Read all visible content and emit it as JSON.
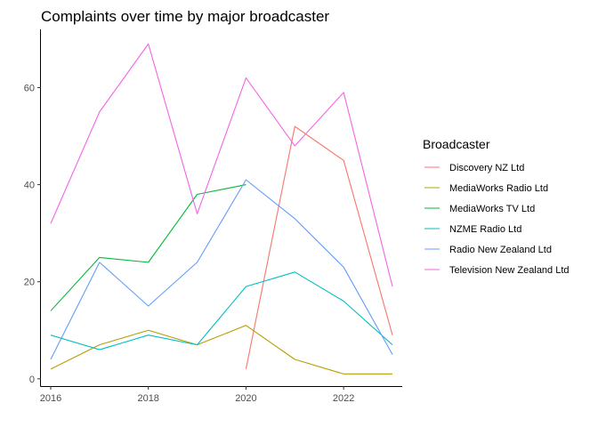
{
  "chart_data": {
    "type": "line",
    "title": "Complaints over time by major broadcaster",
    "xlabel": "",
    "ylabel": "",
    "xlim": [
      2015.8,
      2023.2
    ],
    "ylim": [
      -1.5,
      72
    ],
    "x_ticks": [
      2016,
      2018,
      2020,
      2022
    ],
    "y_ticks": [
      0,
      20,
      40,
      60
    ],
    "grid": false,
    "legend_position": "right",
    "legend_title": "Broadcaster",
    "series": [
      {
        "name": "Discovery NZ Ltd",
        "color": "#F8766D",
        "points": [
          [
            2020,
            2
          ],
          [
            2021,
            52
          ],
          [
            2022,
            45
          ],
          [
            2023,
            9
          ]
        ]
      },
      {
        "name": "MediaWorks Radio Ltd",
        "color": "#B79F00",
        "points": [
          [
            2016,
            2
          ],
          [
            2017,
            7
          ],
          [
            2018,
            10
          ],
          [
            2019,
            7
          ],
          [
            2020,
            11
          ],
          [
            2021,
            4
          ],
          [
            2022,
            1
          ],
          [
            2023,
            1
          ]
        ]
      },
      {
        "name": "MediaWorks TV Ltd",
        "color": "#00BA38",
        "points": [
          [
            2016,
            14
          ],
          [
            2017,
            25
          ],
          [
            2018,
            24
          ],
          [
            2019,
            38
          ],
          [
            2020,
            40
          ]
        ]
      },
      {
        "name": "NZME Radio Ltd",
        "color": "#00BFC4",
        "points": [
          [
            2016,
            9
          ],
          [
            2017,
            6
          ],
          [
            2018,
            9
          ],
          [
            2019,
            7
          ],
          [
            2020,
            19
          ],
          [
            2021,
            22
          ],
          [
            2022,
            16
          ],
          [
            2023,
            7
          ]
        ]
      },
      {
        "name": "Radio New Zealand Ltd",
        "color": "#619CFF",
        "points": [
          [
            2016,
            4
          ],
          [
            2017,
            24
          ],
          [
            2018,
            15
          ],
          [
            2019,
            24
          ],
          [
            2020,
            41
          ],
          [
            2021,
            33
          ],
          [
            2022,
            23
          ],
          [
            2023,
            5
          ]
        ]
      },
      {
        "name": "Television New Zealand Ltd",
        "color": "#F564E3",
        "points": [
          [
            2016,
            32
          ],
          [
            2017,
            55
          ],
          [
            2018,
            69
          ],
          [
            2019,
            34
          ],
          [
            2020,
            62
          ],
          [
            2021,
            48
          ],
          [
            2022,
            59
          ],
          [
            2023,
            19
          ]
        ]
      }
    ]
  }
}
